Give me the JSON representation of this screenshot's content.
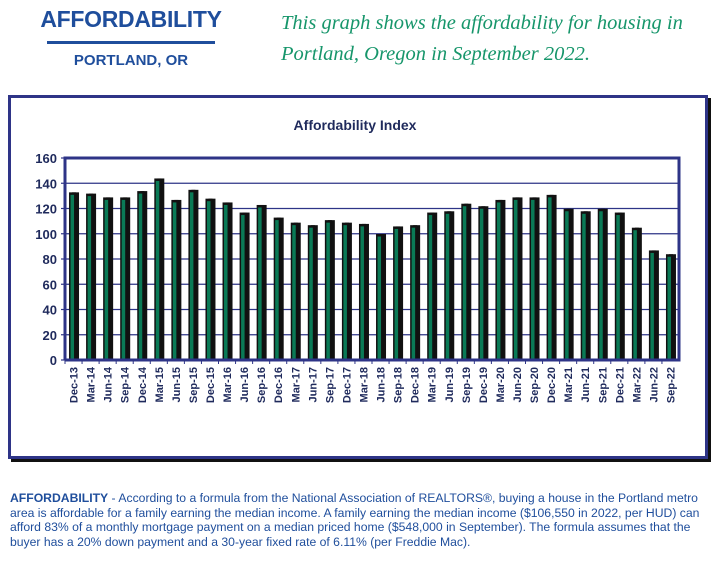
{
  "header": {
    "title": "AFFORDABILITY",
    "subtitle": "PORTLAND, OR",
    "caption": "This graph shows the affordability for housing in Portland, Oregon in September 2022."
  },
  "colors": {
    "brand_blue": "#1f4e9c",
    "caption_green": "#17966b",
    "frame_navy": "#2e3487",
    "bar_green": "#0a7a56",
    "bar_shadow": "#111111"
  },
  "chart_data": {
    "type": "bar",
    "title": "Affordability Index",
    "xlabel": "",
    "ylabel": "",
    "ylim": [
      0,
      160
    ],
    "yticks": [
      0,
      20,
      40,
      60,
      80,
      100,
      120,
      140,
      160
    ],
    "grid": true,
    "legend": "none",
    "categories": [
      "Dec-13",
      "Mar-14",
      "Jun-14",
      "Sep-14",
      "Dec-14",
      "Mar-15",
      "Jun-15",
      "Sep-15",
      "Dec-15",
      "Mar-16",
      "Jun-16",
      "Sep-16",
      "Dec-16",
      "Mar-17",
      "Jun-17",
      "Sep-17",
      "Dec-17",
      "Mar-18",
      "Jun-18",
      "Sep-18",
      "Dec-18",
      "Mar-19",
      "Jun-19",
      "Sep-19",
      "Dec-19",
      "Mar-20",
      "Jun-20",
      "Sep-20",
      "Dec-20",
      "Mar-21",
      "Jun-21",
      "Sep-21",
      "Dec-21",
      "Mar-22",
      "Jun-22",
      "Sep-22"
    ],
    "values": [
      132,
      131,
      128,
      128,
      133,
      143,
      126,
      134,
      127,
      124,
      116,
      122,
      112,
      108,
      106,
      110,
      108,
      107,
      99,
      105,
      106,
      116,
      117,
      123,
      121,
      126,
      128,
      128,
      130,
      119,
      117,
      119,
      116,
      104,
      86,
      83
    ]
  },
  "footer": {
    "lead": "AFFORDABILITY",
    "separator": " - ",
    "body": "According to a formula from the National Association of REALTORS®, buying a house in the Portland metro area is affordable for a family earning the median income. A family earning the median income ($106,550 in 2022, per HUD) can afford 83% of a monthly mortgage payment on a median priced home ($548,000 in September). The formula assumes that the buyer has a 20% down payment and a 30-year fixed rate of 6.11% (per Freddie Mac)."
  }
}
